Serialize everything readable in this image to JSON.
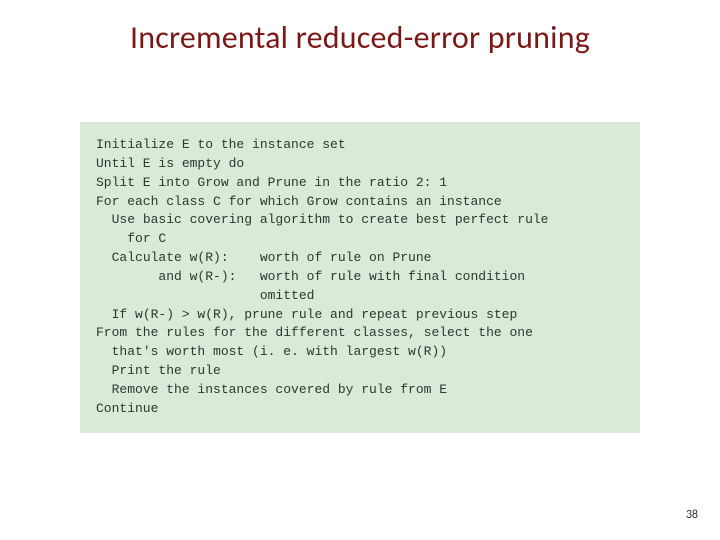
{
  "slide": {
    "title": "Incremental reduced-error pruning",
    "page_number": "38",
    "title_color": "#7a1818",
    "background_color": "#ffffff",
    "box_background_color": "#d9ead8",
    "code_color": "#2b3a2b",
    "title_fontsize": 32,
    "code_fontsize": 13,
    "code_font_family": "Courier New",
    "code_lines": [
      "Initialize E to the instance set",
      "Until E is empty do",
      "Split E into Grow and Prune in the ratio 2: 1",
      "For each class C for which Grow contains an instance",
      "  Use basic covering algorithm to create best perfect rule",
      "    for C",
      "  Calculate w(R):    worth of rule on Prune",
      "        and w(R-):   worth of rule with final condition",
      "                     omitted",
      "  If w(R-) > w(R), prune rule and repeat previous step",
      "From the rules for the different classes, select the one",
      "  that's worth most (i. e. with largest w(R))",
      "  Print the rule",
      "  Remove the instances covered by rule from E",
      "Continue"
    ]
  }
}
